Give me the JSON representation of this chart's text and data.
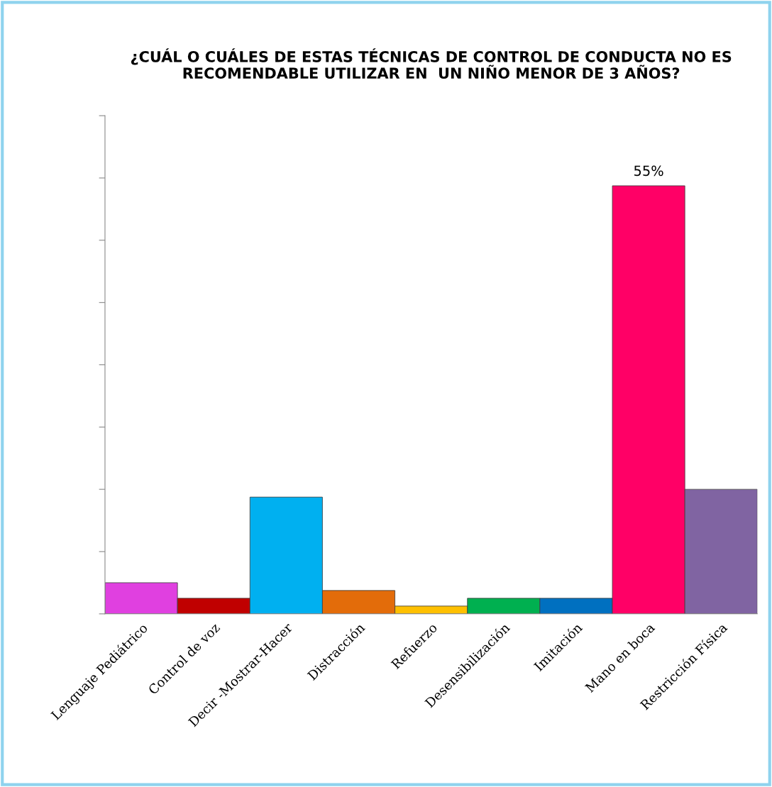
{
  "chart_data": {
    "type": "bar",
    "title": "¿CUÁL O CUÁLES DE ESTAS TÉCNICAS DE CONTROL DE CONDUCTA NO ES RECOMENDABLE UTILIZAR EN  UN NIÑO MENOR DE 3 AÑOS?",
    "categories": [
      "Lenguaje Pediátrico",
      "Control de voz",
      "Decir -Mostrar-Hacer",
      "Distracción",
      "Refuerzo",
      "Desensibilización",
      "Imitación",
      "Mano en boca",
      "Restricción Física"
    ],
    "values": [
      4,
      2,
      15,
      3,
      1,
      2,
      2,
      55,
      16
    ],
    "ylim": [
      0,
      64
    ],
    "yticks": [
      {
        "value": 0,
        "label": null
      },
      {
        "value": 8,
        "label": null
      },
      {
        "value": 16,
        "label": null
      },
      {
        "value": 24,
        "label": null
      },
      {
        "value": 32,
        "label": null
      },
      {
        "value": 40,
        "label": null
      },
      {
        "value": 48,
        "label": null
      },
      {
        "value": 56,
        "label": null
      },
      {
        "value": 64,
        "label": null
      }
    ],
    "colors": [
      "#e040e0",
      "#c00000",
      "#00b0f0",
      "#e36c0a",
      "#ffc000",
      "#00b050",
      "#0070c0",
      "#ff0066",
      "#8064a2"
    ],
    "value_labels": [
      null,
      null,
      null,
      null,
      null,
      null,
      null,
      "55%",
      null
    ],
    "grid": false,
    "legend": false
  }
}
